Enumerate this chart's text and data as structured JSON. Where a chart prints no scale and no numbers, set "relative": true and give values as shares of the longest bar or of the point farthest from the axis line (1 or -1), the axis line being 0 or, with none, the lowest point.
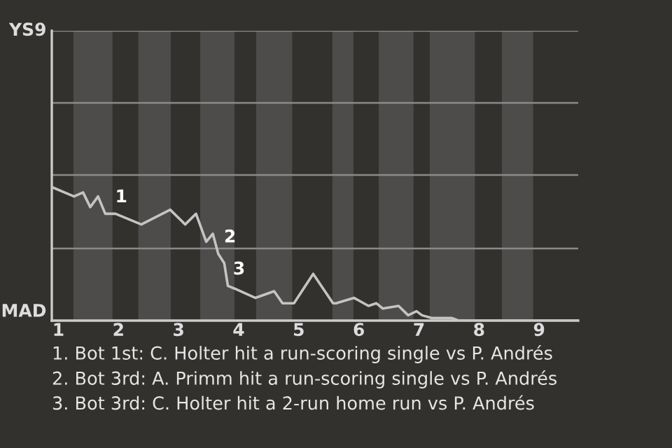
{
  "chart_data": {
    "type": "line",
    "relative": true,
    "x": [
      0.89,
      1.26,
      1.41,
      1.53,
      1.66,
      1.78,
      1.95,
      2.38,
      2.86,
      3.11,
      3.29,
      3.46,
      3.57,
      3.66,
      3.76,
      3.82,
      3.93,
      4.28,
      4.59,
      4.73,
      4.92,
      5.24,
      5.57,
      5.62,
      5.92,
      6.16,
      6.29,
      6.4,
      6.66,
      6.82,
      6.96,
      7.05,
      7.21,
      7.54,
      7.66,
      9.65
    ],
    "series": [
      {
        "color": "#c4c4c4",
        "values": [
          1,
          0.93,
          0.96,
          0.85,
          0.93,
          0.8,
          0.8,
          0.72,
          0.83,
          0.72,
          0.8,
          0.59,
          0.65,
          0.5,
          0.43,
          0.26,
          0.24,
          0.17,
          0.22,
          0.13,
          0.13,
          0.35,
          0.13,
          0.13,
          0.17,
          0.11,
          0.13,
          0.09,
          0.11,
          0.04,
          0.07,
          0.04,
          0.02,
          0.02,
          0,
          0
        ]
      }
    ],
    "xlim": [
      0.89,
      9.65
    ],
    "xticks": [
      1,
      2,
      3,
      4,
      5,
      6,
      7,
      8,
      9
    ],
    "ref_lines": [
      {
        "axis": "y",
        "value": 0.54,
        "color": "#8a8a8a"
      },
      {
        "axis": "y",
        "value": 1.09,
        "color": "#8a8a8a"
      },
      {
        "axis": "y",
        "value": 1.63,
        "color": "#8a8a8a"
      },
      {
        "axis": "y",
        "value": 2.17,
        "color": "#8a8a8a"
      }
    ],
    "legend": false,
    "marker": "none",
    "line_style": "solid",
    "bands": [
      {
        "axis": "x",
        "from": 1.25,
        "to": 1.9,
        "color": "#4d4c4b"
      },
      {
        "axis": "x",
        "from": 2.33,
        "to": 2.87,
        "color": "#4d4c4b"
      },
      {
        "axis": "x",
        "from": 3.36,
        "to": 3.93,
        "color": "#4d4c4b"
      },
      {
        "axis": "x",
        "from": 4.29,
        "to": 4.89,
        "color": "#4d4c4b"
      },
      {
        "axis": "x",
        "from": 5.56,
        "to": 5.91,
        "color": "#4d4c4b"
      },
      {
        "axis": "x",
        "from": 6.33,
        "to": 6.91,
        "color": "#4d4c4b"
      },
      {
        "axis": "x",
        "from": 7.18,
        "to": 7.93,
        "color": "#4d4c4b"
      },
      {
        "axis": "x",
        "from": 8.38,
        "to": 8.9,
        "color": "#4d4c4b"
      }
    ],
    "annotations": [
      "YS9",
      "MAD",
      {
        "text": "1",
        "x": 1.88,
        "y": 0.8
      },
      {
        "text": "2",
        "x": 3.69,
        "y": 0.5
      },
      {
        "text": "3",
        "x": 3.84,
        "y": 0.26
      },
      "1. Bot 1st: C. Holter hit a run-scoring single vs P. Andrés",
      "2. Bot 3rd: A. Primm hit a run-scoring single vs P. Andrés",
      "3. Bot 3rd: C. Holter hit a 2-run home run vs P. Andrés"
    ]
  }
}
